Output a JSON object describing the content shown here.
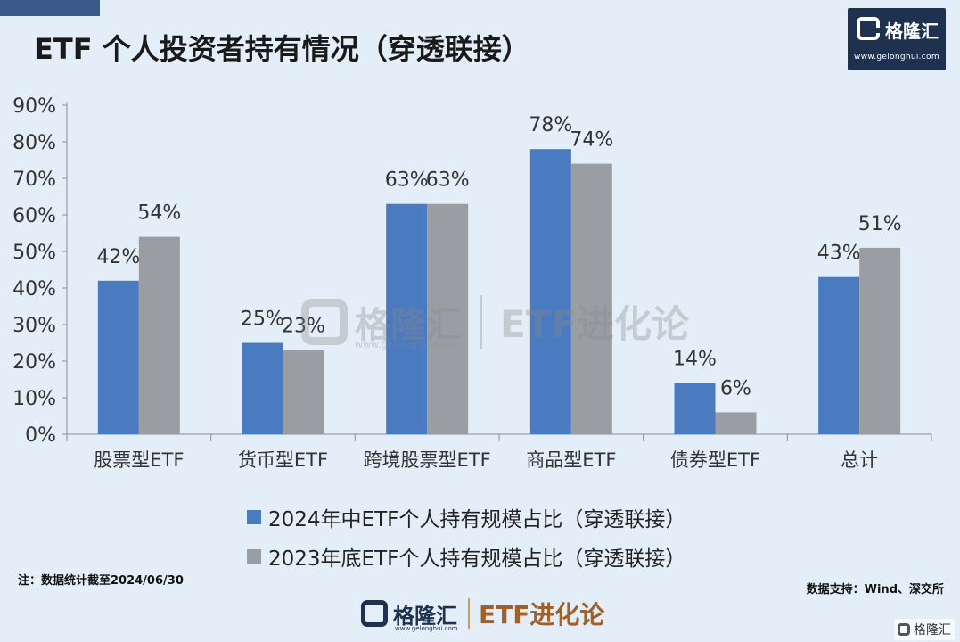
{
  "header": {
    "title": "ETF 个人投资者持有情况（穿透联接）"
  },
  "logo": {
    "brand": "格隆汇",
    "url": "www.gelonghui.com"
  },
  "chart_data": {
    "type": "bar",
    "categories": [
      "股票型ETF",
      "货币型ETF",
      "跨境股票型ETF",
      "商品型ETF",
      "债券型ETF",
      "总计"
    ],
    "series": [
      {
        "name": "2024年中ETF个人持有规模占比（穿透联接）",
        "values": [
          42,
          25,
          63,
          78,
          14,
          43
        ],
        "labels": [
          "42%",
          "25%",
          "63%",
          "78%",
          "14%",
          "43%"
        ],
        "color": "#4a7ac0"
      },
      {
        "name": "2023年底ETF个人持有规模占比（穿透联接）",
        "values": [
          54,
          23,
          63,
          74,
          6,
          51
        ],
        "labels": [
          "54%",
          "23%",
          "63%",
          "74%",
          "6%",
          "51%"
        ],
        "color": "#9a9ea3"
      }
    ],
    "ylim": [
      0,
      90
    ],
    "yticks": [
      "0%",
      "10%",
      "20%",
      "30%",
      "40%",
      "50%",
      "60%",
      "70%",
      "80%",
      "90%"
    ],
    "grid": false,
    "legend_position": "bottom"
  },
  "footnote": {
    "note": "注：数据统计截至2024/06/30",
    "source": "数据支持：Wind、深交所"
  },
  "footer": {
    "brand": "格隆汇",
    "url": "www.gelonghui.com",
    "slogan": "ETF进化论"
  },
  "watermark": {
    "brand": "格隆汇",
    "url": "www.gelonghui.com",
    "slogan": "ETF进化论"
  },
  "corner_mark": {
    "text": "格隆汇"
  }
}
